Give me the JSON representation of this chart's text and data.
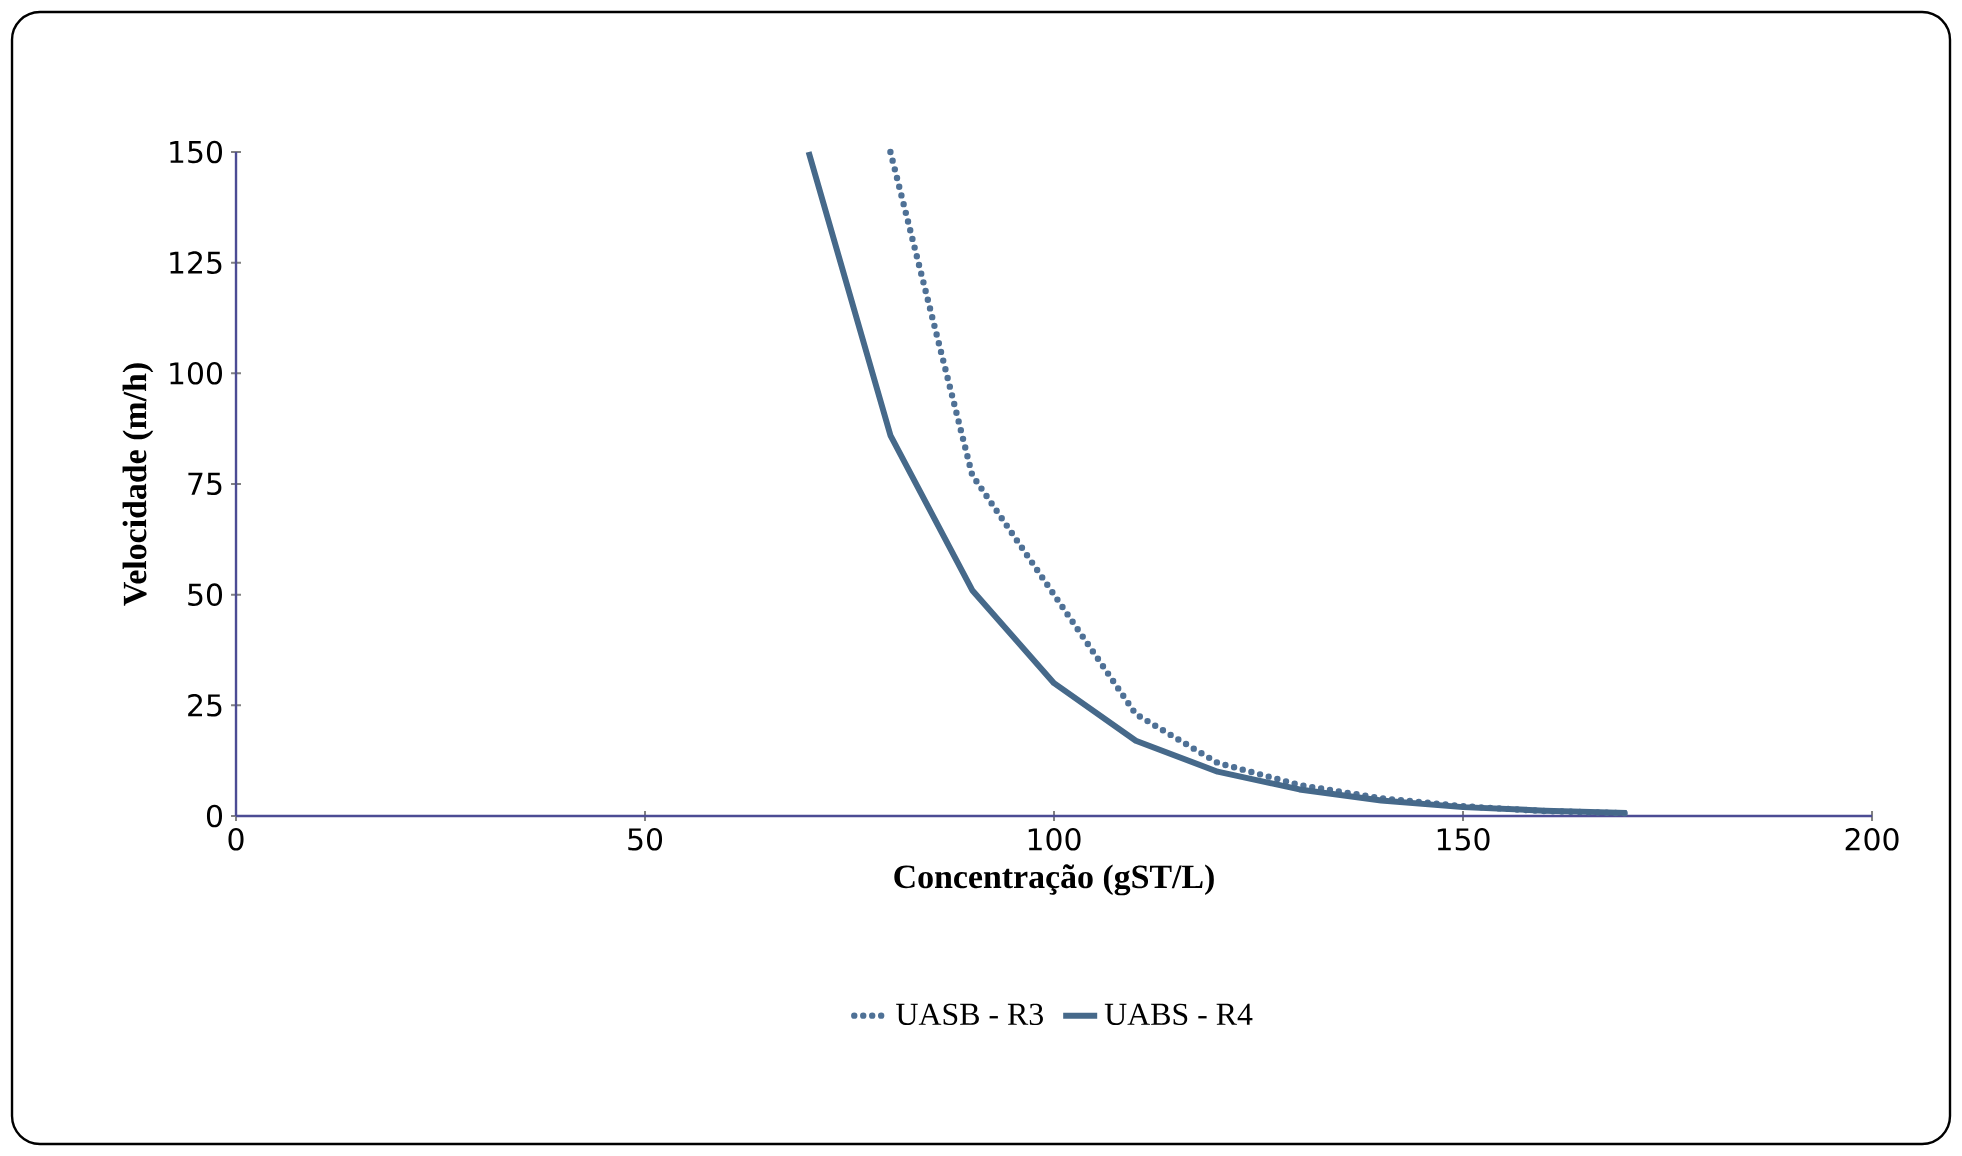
{
  "chart_data": {
    "type": "line",
    "xlabel": "Concentração (gST/L)",
    "ylabel": "Velocidade (m/h)",
    "xlim": [
      0,
      200
    ],
    "xticks": [
      0,
      50,
      100,
      150,
      200
    ],
    "ylim": [
      0,
      150
    ],
    "yticks": [
      0,
      25,
      50,
      75,
      100,
      125,
      150
    ],
    "legend": "bottom",
    "grid": false,
    "series": [
      {
        "name": "UASB -  R3",
        "color": "#4f7196",
        "line_style": "dotted",
        "x": [
          80,
          90,
          100,
          110,
          120,
          130,
          140,
          150,
          160,
          170
        ],
        "values": [
          150,
          77,
          50,
          23,
          12,
          7,
          4,
          2.2,
          1.1,
          0.6
        ]
      },
      {
        "name": "UABS - R4",
        "color": "#46698a",
        "line_style": "solid",
        "x": [
          70,
          80,
          90,
          100,
          110,
          120,
          130,
          140,
          150,
          160,
          170
        ],
        "values": [
          150,
          86,
          51,
          30,
          17,
          10,
          6,
          3.5,
          2,
          1.2,
          0.7
        ]
      }
    ]
  }
}
